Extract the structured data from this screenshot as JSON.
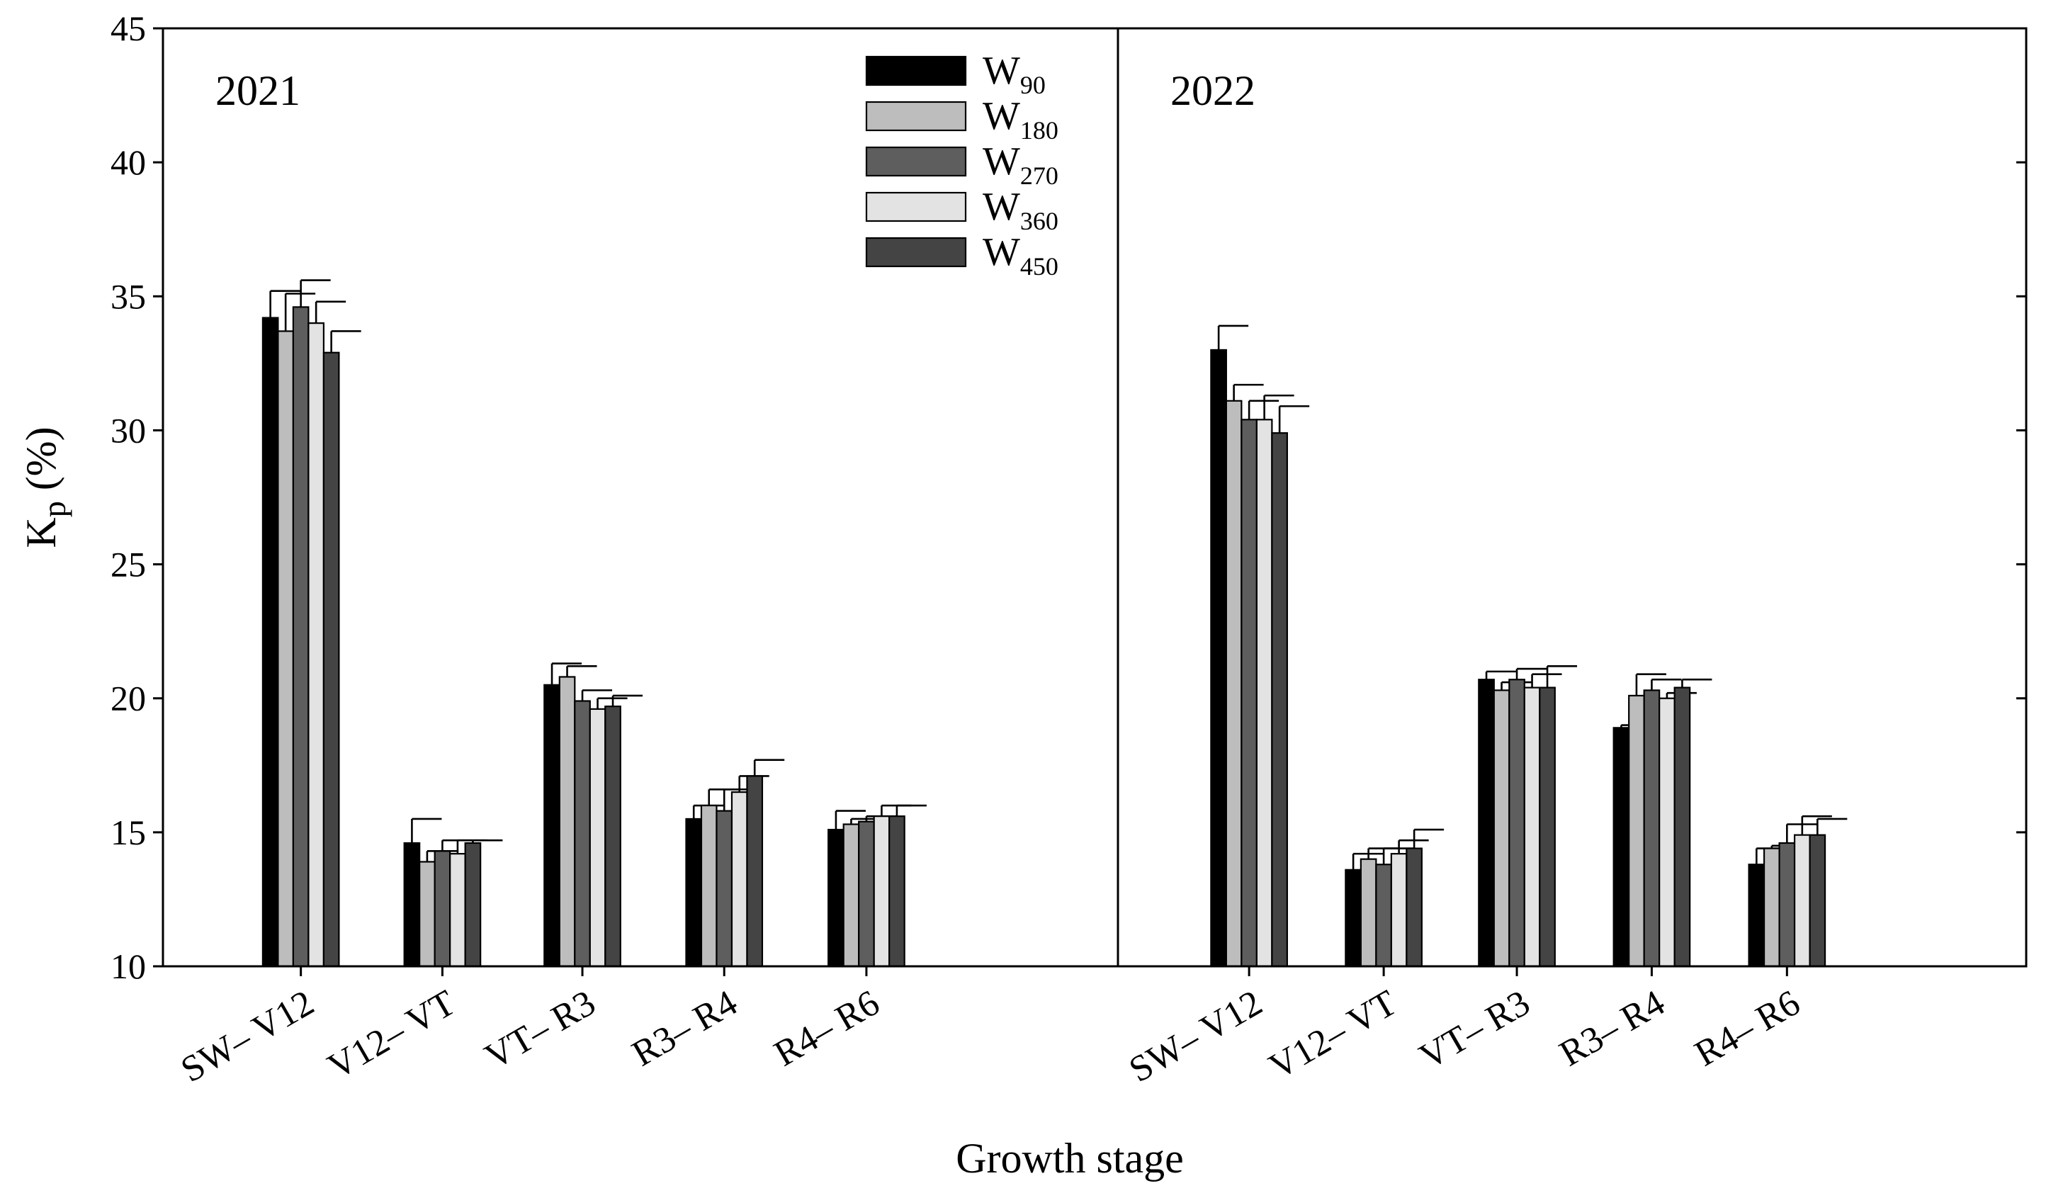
{
  "chart_data": {
    "type": "bar",
    "xlabel": "Growth stage",
    "ylabel": {
      "main": "K",
      "sub": "p",
      "suffix": " (%)"
    },
    "ylim": [
      10,
      45
    ],
    "yticks": [
      10,
      15,
      20,
      25,
      30,
      35,
      40,
      45
    ],
    "categories": [
      "SW– V12",
      "V12– VT",
      "VT– R3",
      "R3– R4",
      "R4– R6"
    ],
    "legend": {
      "placement": "top-center",
      "entries": [
        {
          "main": "W",
          "sub": "90"
        },
        {
          "main": "W",
          "sub": "180"
        },
        {
          "main": "W",
          "sub": "270"
        },
        {
          "main": "W",
          "sub": "360"
        },
        {
          "main": "W",
          "sub": "450"
        }
      ]
    },
    "series_colors": [
      "#000000",
      "#bdbdbd",
      "#5e5e5e",
      "#e3e3e3",
      "#444444"
    ],
    "panels": [
      {
        "title": "2021",
        "series": [
          {
            "name": "W90",
            "values": [
              34.2,
              14.6,
              20.5,
              15.5,
              15.1
            ],
            "errors": [
              1.0,
              0.9,
              0.8,
              0.5,
              0.7
            ]
          },
          {
            "name": "W180",
            "values": [
              33.7,
              13.9,
              20.8,
              16.0,
              15.3
            ],
            "errors": [
              1.4,
              0.4,
              0.4,
              0.6,
              0.2
            ]
          },
          {
            "name": "W270",
            "values": [
              34.6,
              14.3,
              19.9,
              15.8,
              15.4
            ],
            "errors": [
              1.0,
              0.4,
              0.4,
              0.8,
              0.2
            ]
          },
          {
            "name": "W360",
            "values": [
              34.0,
              14.2,
              19.6,
              16.5,
              15.6
            ],
            "errors": [
              0.8,
              0.5,
              0.4,
              0.6,
              0.4
            ]
          },
          {
            "name": "W450",
            "values": [
              32.9,
              14.6,
              19.7,
              17.1,
              15.6
            ],
            "errors": [
              0.8,
              0.1,
              0.4,
              0.6,
              0.4
            ]
          }
        ]
      },
      {
        "title": "2022",
        "series": [
          {
            "name": "W90",
            "values": [
              33.0,
              13.6,
              20.7,
              18.9,
              13.8
            ],
            "errors": [
              0.9,
              0.6,
              0.3,
              0.1,
              0.6
            ]
          },
          {
            "name": "W180",
            "values": [
              31.1,
              14.0,
              20.3,
              20.1,
              14.4
            ],
            "errors": [
              0.6,
              0.4,
              0.3,
              0.8,
              0.1
            ]
          },
          {
            "name": "W270",
            "values": [
              30.4,
              13.8,
              20.7,
              20.3,
              14.6
            ],
            "errors": [
              0.7,
              0.6,
              0.4,
              0.4,
              0.7
            ]
          },
          {
            "name": "W360",
            "values": [
              30.4,
              14.2,
              20.4,
              20.0,
              14.9
            ],
            "errors": [
              0.9,
              0.5,
              0.5,
              0.2,
              0.7
            ]
          },
          {
            "name": "W450",
            "values": [
              29.9,
              14.4,
              20.4,
              20.4,
              14.9
            ],
            "errors": [
              1.0,
              0.7,
              0.8,
              0.3,
              0.6
            ]
          }
        ]
      }
    ]
  }
}
